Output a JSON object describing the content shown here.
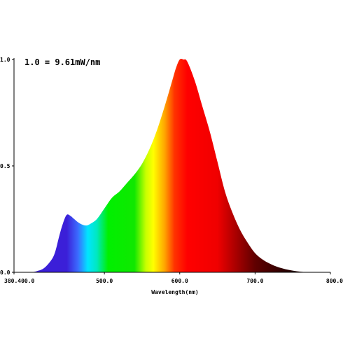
{
  "chart_data": {
    "type": "area",
    "annotation": "1.0 = 9.61mW/nm",
    "xlabel": "Wavelength(nm)",
    "ylabel": "",
    "xlim": [
      380,
      800
    ],
    "ylim": [
      0,
      1.0
    ],
    "grid": false,
    "x_tick_labels": [
      {
        "value": 380,
        "label": "380.400.0"
      },
      {
        "value": 500,
        "label": "500.0"
      },
      {
        "value": 600,
        "label": "600.0"
      },
      {
        "value": 700,
        "label": "700.0"
      },
      {
        "value": 800,
        "label": "800.0"
      }
    ],
    "y_tick_labels": [
      {
        "value": 0.0,
        "label": "0.0"
      },
      {
        "value": 0.5,
        "label": "0.5"
      },
      {
        "value": 1.0,
        "label": "1.0"
      }
    ],
    "series": [
      {
        "fill": "visible-spectrum-gradient",
        "x": [
          380,
          400,
          410,
          420,
          430,
          435,
          440,
          445,
          450,
          455,
          460,
          465,
          470,
          475,
          480,
          490,
          500,
          510,
          520,
          530,
          540,
          550,
          560,
          570,
          580,
          590,
          595,
          600,
          605,
          610,
          620,
          630,
          640,
          650,
          660,
          670,
          680,
          690,
          700,
          710,
          720,
          730,
          740,
          750,
          760,
          770
        ],
        "y": [
          0.0,
          0.0,
          0.005,
          0.02,
          0.06,
          0.1,
          0.17,
          0.23,
          0.27,
          0.265,
          0.25,
          0.235,
          0.225,
          0.22,
          0.225,
          0.25,
          0.3,
          0.35,
          0.38,
          0.42,
          0.46,
          0.51,
          0.58,
          0.67,
          0.78,
          0.9,
          0.96,
          1.0,
          1.0,
          0.99,
          0.9,
          0.78,
          0.66,
          0.52,
          0.38,
          0.28,
          0.2,
          0.14,
          0.09,
          0.06,
          0.04,
          0.025,
          0.015,
          0.008,
          0.003,
          0.0
        ]
      }
    ],
    "spectrum_stops": [
      {
        "nm": 420,
        "color": "#3b1fd8"
      },
      {
        "nm": 450,
        "color": "#3b1fd8"
      },
      {
        "nm": 465,
        "color": "#3b6cff"
      },
      {
        "nm": 478,
        "color": "#00e5ff"
      },
      {
        "nm": 490,
        "color": "#00e8c0"
      },
      {
        "nm": 505,
        "color": "#00f000"
      },
      {
        "nm": 540,
        "color": "#10e800"
      },
      {
        "nm": 555,
        "color": "#c8ff00"
      },
      {
        "nm": 565,
        "color": "#ffff00"
      },
      {
        "nm": 580,
        "color": "#ffa500"
      },
      {
        "nm": 593,
        "color": "#ff3300"
      },
      {
        "nm": 610,
        "color": "#ff0000"
      },
      {
        "nm": 650,
        "color": "#f00000"
      },
      {
        "nm": 672,
        "color": "#b00000"
      },
      {
        "nm": 700,
        "color": "#600000"
      },
      {
        "nm": 740,
        "color": "#2a0000"
      },
      {
        "nm": 770,
        "color": "#1a0000"
      }
    ],
    "axis_color": "#000000"
  }
}
